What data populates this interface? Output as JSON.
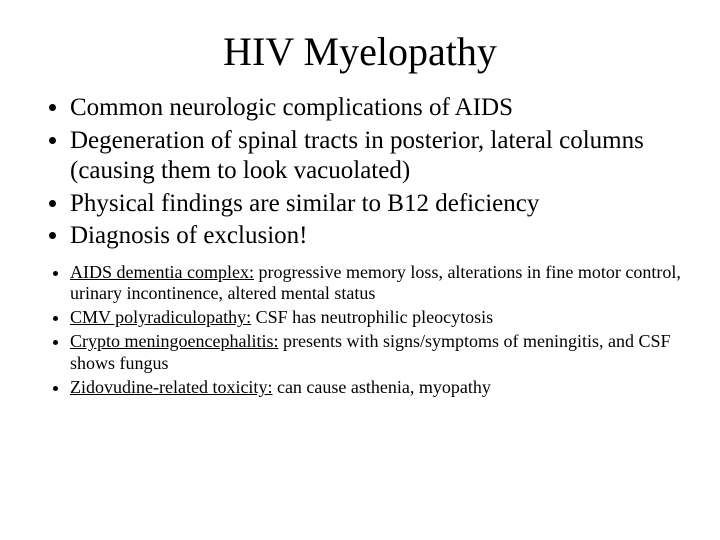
{
  "title": "HIV Myelopathy",
  "title_fontsize": 40,
  "main_fontsize": 25,
  "sub_fontsize": 18,
  "background_color": "#ffffff",
  "text_color": "#000000",
  "font_family": "Times New Roman",
  "main_bullets": [
    "Common neurologic complications of AIDS",
    "Degeneration of spinal tracts in posterior, lateral columns (causing them to look vacuolated)",
    "Physical findings are similar to B12 deficiency",
    "Diagnosis of exclusion!"
  ],
  "sub_bullets": [
    {
      "term": "AIDS dementia complex:",
      "rest": " progressive memory loss, alterations in fine motor control, urinary incontinence, altered mental status"
    },
    {
      "term": "CMV polyradiculopathy:",
      "rest": "  CSF has neutrophilic pleocytosis"
    },
    {
      "term": "Crypto meningoencephalitis:",
      "rest": " presents with signs/symptoms of meningitis, and CSF shows fungus"
    },
    {
      "term": "Zidovudine-related toxicity:",
      "rest": " can cause asthenia, myopathy"
    }
  ]
}
